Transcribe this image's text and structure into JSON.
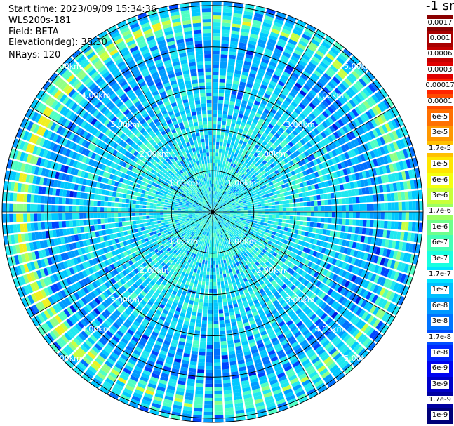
{
  "header": {
    "start_time": "Start time: 2023/09/09 15:34:36",
    "instrument": "WLS200s-181",
    "field": "Field: BETA",
    "elevation": "Elevation(deg): 35.30",
    "nrays": "NRays: 120"
  },
  "unit_label": "-1 sr",
  "colorbar": [
    {
      "label": "0.0017",
      "color": "#8a0000"
    },
    {
      "label": "0.001",
      "color": "#a80000"
    },
    {
      "label": "0.0006",
      "color": "#c40000"
    },
    {
      "label": "0.0003",
      "color": "#e00000"
    },
    {
      "label": "0.00017",
      "color": "#ff2400"
    },
    {
      "label": "0.0001",
      "color": "#ff4a00"
    },
    {
      "label": "6e-5",
      "color": "#ff7000"
    },
    {
      "label": "3e-5",
      "color": "#ff9800"
    },
    {
      "label": "1.7e-5",
      "color": "#ffc000"
    },
    {
      "label": "1e-5",
      "color": "#ffe600"
    },
    {
      "label": "6e-6",
      "color": "#f4ff10"
    },
    {
      "label": "3e-6",
      "color": "#c8ff3a"
    },
    {
      "label": "1.7e-6",
      "color": "#9cff62"
    },
    {
      "label": "1e-6",
      "color": "#6eff8c"
    },
    {
      "label": "6e-7",
      "color": "#44ffb6"
    },
    {
      "label": "3e-7",
      "color": "#18ffe0"
    },
    {
      "label": "1.7e-7",
      "color": "#00e4ff"
    },
    {
      "label": "1e-7",
      "color": "#00c0ff"
    },
    {
      "label": "6e-8",
      "color": "#009aff"
    },
    {
      "label": "3e-8",
      "color": "#0074ff"
    },
    {
      "label": "1.7e-8",
      "color": "#004eff"
    },
    {
      "label": "1e-8",
      "color": "#0028ff"
    },
    {
      "label": "6e-9",
      "color": "#0004f0"
    },
    {
      "label": "3e-9",
      "color": "#0000c8"
    },
    {
      "label": "1.7e-9",
      "color": "#0000a0"
    },
    {
      "label": "1e-9",
      "color": "#000078"
    }
  ],
  "chart_data": {
    "type": "heatmap",
    "projection": "polar",
    "nrays": 120,
    "range_labels": [
      "1.00km",
      "2.00km",
      "3.00km",
      "4.00km",
      "5.00km"
    ],
    "range_values_km": [
      1,
      2,
      3,
      4,
      5
    ],
    "max_range_km": 5.1,
    "scale": "log",
    "value_range": [
      1e-09,
      0.0017
    ],
    "range_label_placement": "diagonals",
    "grid": true
  }
}
